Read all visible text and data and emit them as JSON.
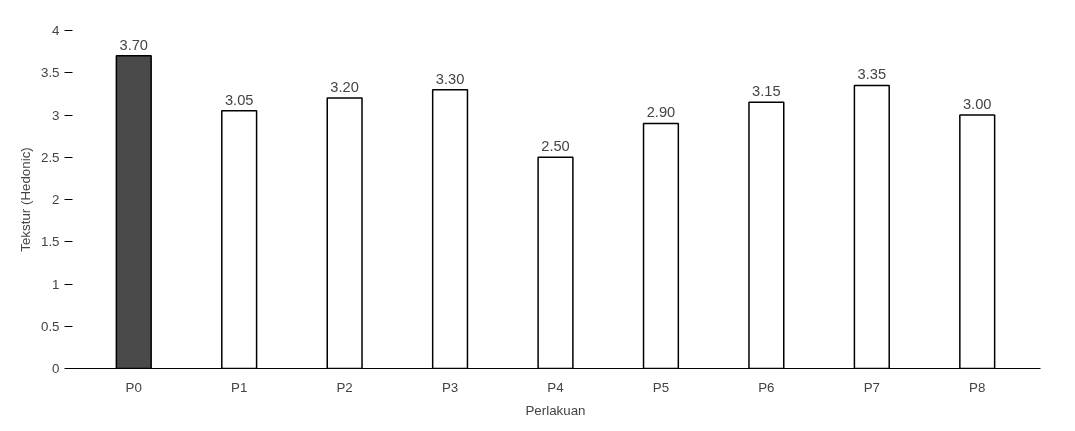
{
  "chart_data": {
    "type": "bar",
    "xlabel": "Perlakuan",
    "ylabel": "Tekstur (Hedonic)",
    "categories": [
      "P0",
      "P1",
      "P2",
      "P3",
      "P4",
      "P5",
      "P6",
      "P7",
      "P8"
    ],
    "values": [
      3.7,
      3.05,
      3.2,
      3.3,
      2.5,
      2.9,
      3.15,
      3.35,
      3.0
    ],
    "value_labels": [
      "3.70",
      "3.05",
      "3.20",
      "3.30",
      "2.50",
      "2.90",
      "3.15",
      "3.35",
      "3.00"
    ],
    "colors": [
      "#4a4a4a",
      "#ffffff",
      "#ffffff",
      "#ffffff",
      "#ffffff",
      "#ffffff",
      "#ffffff",
      "#ffffff",
      "#ffffff"
    ],
    "ylim": [
      0,
      4
    ],
    "yticks": [
      0,
      0.5,
      1,
      1.5,
      2,
      2.5,
      3,
      3.5,
      4
    ],
    "grid": false
  }
}
